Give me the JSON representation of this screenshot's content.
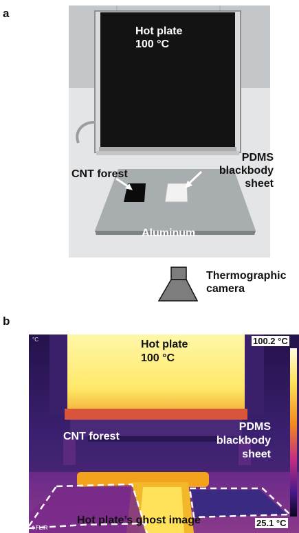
{
  "panel_a": {
    "letter": "a",
    "hot_plate_line1": "Hot plate",
    "hot_plate_line2": "100 °C",
    "pdms_line1": "PDMS",
    "pdms_line2": "blackbody",
    "pdms_line3": "sheet",
    "cnt_label": "CNT forest",
    "aluminum_label": "Aluminum",
    "camera_line1": "Thermographic",
    "camera_line2": "camera"
  },
  "panel_b": {
    "letter": "b",
    "unit_corner": "°C",
    "hot_plate_line1": "Hot plate",
    "hot_plate_line2": "100 °C",
    "max_temp": "100.2 °C",
    "pdms_line1": "PDMS",
    "pdms_line2": "blackbody",
    "pdms_line3": "sheet",
    "cnt_label": "CNT forest",
    "ghost_label": "Hot plate’s ghost image",
    "min_temp": "25.1 °C",
    "brand": "FLIR"
  },
  "colors": {
    "thermal_hot": "#fff27a",
    "thermal_warm": "#f2a21c",
    "thermal_mid": "#c8307e",
    "thermal_cool": "#4a2a8a",
    "thermal_cold": "#1a0f3a",
    "camera_gray": "#7d7d7d"
  }
}
